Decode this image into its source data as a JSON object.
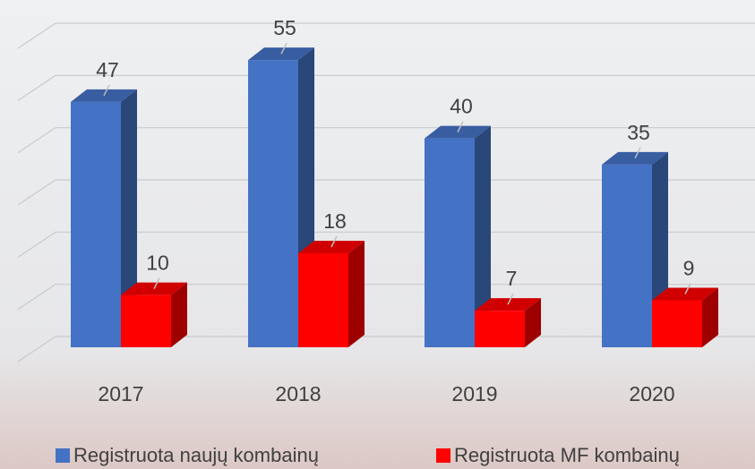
{
  "chart_data": {
    "type": "bar3d",
    "categories": [
      "2017",
      "2018",
      "2019",
      "2020"
    ],
    "series": [
      {
        "name": "Registruota naujų kombainų",
        "color": "#4472c4",
        "values": [
          47,
          55,
          40,
          35
        ]
      },
      {
        "name": "Registruota MF kombainų",
        "color": "#ff0000",
        "values": [
          10,
          18,
          7,
          9
        ]
      }
    ],
    "ylim": [
      0,
      60
    ],
    "yticks": [
      0,
      10,
      20,
      30,
      40,
      50,
      60
    ],
    "grid": true
  }
}
